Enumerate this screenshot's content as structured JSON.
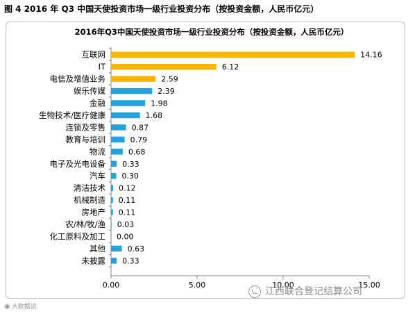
{
  "figure_title": "图 4 2016 年 Q3 中国天使投资市场一级行业投资分布（按投资金额，人民币亿元）",
  "watermark_left": "大数据说",
  "watermark_right": "江西联合登记结算公司",
  "colors": {
    "highlight": "#F5B800",
    "normal": "#25A2DC",
    "axis": "#808080",
    "frame": "#BDBDBD"
  },
  "icons": {
    "watermark_left": "weibo-icon",
    "watermark_right": "wechat-icon"
  },
  "chart_data": {
    "type": "bar",
    "orientation": "horizontal",
    "title": "2016年Q3中国天使投资市场一级行业投资分布（按投资金额，人民币亿元）",
    "categories": [
      "互联网",
      "IT",
      "电信及增值业务",
      "娱乐传媒",
      "金融",
      "生物技术/医疗健康",
      "连锁及零售",
      "教育与培训",
      "物流",
      "电子及光电设备",
      "汽车",
      "清洁技术",
      "机械制造",
      "房地产",
      "农/林/牧/渔",
      "化工原料及加工",
      "其他",
      "未披露"
    ],
    "values": [
      14.16,
      6.12,
      2.59,
      2.39,
      1.98,
      1.68,
      0.87,
      0.79,
      0.68,
      0.33,
      0.3,
      0.12,
      0.11,
      0.11,
      0.03,
      0.0,
      0.63,
      0.33
    ],
    "value_labels": [
      "14.16",
      "6.12",
      "2.59",
      "2.39",
      "1.98",
      "1.68",
      "0.87",
      "0.79",
      "0.68",
      "0.33",
      "0.30",
      "0.12",
      "0.11",
      "0.11",
      "0.03",
      "0.00",
      "0.63",
      "0.33"
    ],
    "highlighted": [
      true,
      true,
      true,
      false,
      false,
      false,
      false,
      false,
      false,
      false,
      false,
      false,
      false,
      false,
      false,
      false,
      false,
      false
    ],
    "xlim": [
      0,
      15
    ],
    "xticks": [
      0,
      5,
      10,
      15
    ],
    "xtick_labels": [
      "0.00",
      "5.00",
      "10.00",
      "15.00"
    ],
    "grid": false,
    "legend": "none"
  }
}
